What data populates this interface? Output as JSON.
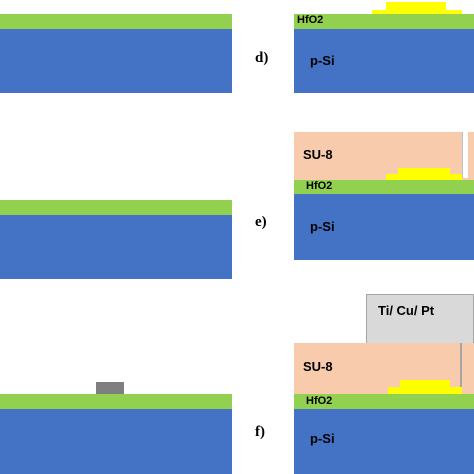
{
  "steps": {
    "d": "d)",
    "e": "e)",
    "f": "f)"
  },
  "layers": {
    "substrate": "p-Si",
    "dielectric": "HfO2",
    "resist": "SU-8",
    "contact": "Ti/ Cu/ Pt"
  },
  "colors": {
    "substrate": "#4472c4",
    "dielectric": "#92d050",
    "resist": "#f8cbad",
    "electrode": "#ffff00",
    "via": "#7f7f7f",
    "contact": "#d9d9d9"
  }
}
